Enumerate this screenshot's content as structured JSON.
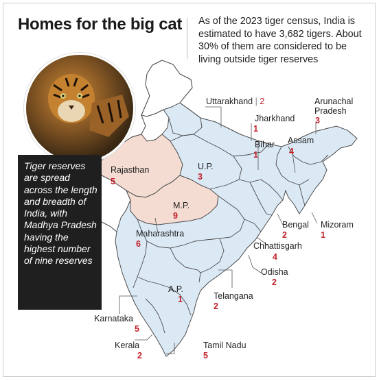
{
  "header": {
    "title": "Homes for the big cat",
    "intro": "As of the 2023 tiger census, India is estimated to have 3,682 tigers. About 30% of them are considered to be living outside tiger reserves"
  },
  "sidebar": {
    "text": "Tiger reserves are spread across the length and breadth of India, with Madhya Pradesh having the highest number of nine reserves"
  },
  "colors": {
    "highlight_state": "#f4dcd2",
    "reserve_state": "#dbe9f5",
    "other_state": "#ffffff",
    "count_red": "#c0202a"
  },
  "states": [
    {
      "name": "Uttarakhand",
      "count": "2"
    },
    {
      "name": "Jharkhand",
      "count": "1"
    },
    {
      "name": "Arunachal Pradesh",
      "count": "3"
    },
    {
      "name": "Bihar",
      "count": "1"
    },
    {
      "name": "Assam",
      "count": "4"
    },
    {
      "name": "U.P.",
      "count": "3"
    },
    {
      "name": "Rajasthan",
      "count": "5"
    },
    {
      "name": "M.P.",
      "count": "9"
    },
    {
      "name": "Bengal",
      "count": "2"
    },
    {
      "name": "Mizoram",
      "count": "1"
    },
    {
      "name": "Maharashtra",
      "count": "6"
    },
    {
      "name": "Chhattisgarh",
      "count": "4"
    },
    {
      "name": "Odisha",
      "count": "2"
    },
    {
      "name": "A.P.",
      "count": "1"
    },
    {
      "name": "Telangana",
      "count": "2"
    },
    {
      "name": "Karnataka",
      "count": "5"
    },
    {
      "name": "Kerala",
      "count": "2"
    },
    {
      "name": "Tamil Nadu",
      "count": "5"
    }
  ]
}
